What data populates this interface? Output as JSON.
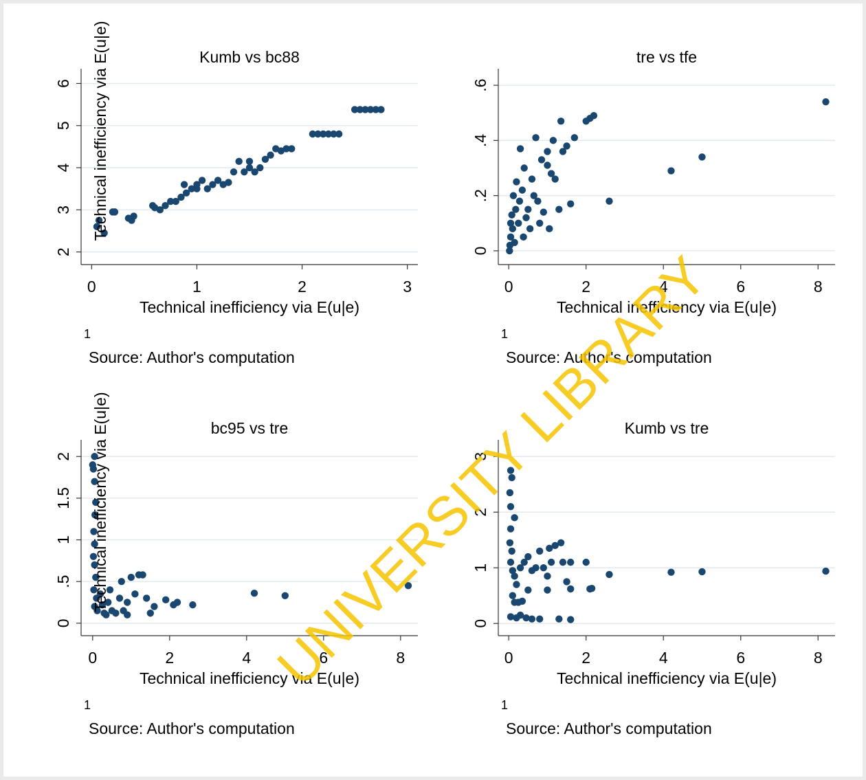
{
  "watermark": "UNIVERSITY LIBRARY",
  "chart_data": [
    {
      "type": "scatter",
      "title": "Kumb vs bc88",
      "xlabel": "Technical inefficiency via E(u|e)",
      "ylabel": "Technical inefficiency via E(u|e)",
      "note": "1",
      "source": "Source: Author's computation",
      "color": "#1a476f",
      "grid": true,
      "xlim": [
        -0.1,
        3.1
      ],
      "ylim": [
        1.7,
        6.35
      ],
      "xticks": [
        0,
        1,
        2,
        3
      ],
      "yticks": [
        2,
        3,
        4,
        5,
        6
      ],
      "x": [
        0.05,
        0.07,
        0.12,
        0.2,
        0.22,
        0.35,
        0.38,
        0.4,
        0.58,
        0.6,
        0.65,
        0.7,
        0.75,
        0.8,
        0.85,
        0.88,
        0.9,
        0.95,
        1.0,
        1.0,
        1.05,
        1.1,
        1.15,
        1.2,
        1.25,
        1.3,
        1.35,
        1.4,
        1.45,
        1.5,
        1.5,
        1.55,
        1.6,
        1.65,
        1.7,
        1.75,
        1.8,
        1.85,
        1.9,
        2.1,
        2.15,
        2.2,
        2.25,
        2.3,
        2.35,
        2.5,
        2.55,
        2.6,
        2.65,
        2.7,
        2.75
      ],
      "values": [
        2.6,
        2.75,
        2.45,
        2.95,
        2.95,
        2.8,
        2.75,
        2.85,
        3.1,
        3.05,
        3.0,
        3.1,
        3.2,
        3.2,
        3.3,
        3.6,
        3.4,
        3.5,
        3.5,
        3.6,
        3.7,
        3.5,
        3.6,
        3.7,
        3.6,
        3.65,
        3.9,
        4.15,
        3.9,
        4.0,
        4.15,
        3.9,
        4.0,
        4.2,
        4.3,
        4.45,
        4.4,
        4.45,
        4.45,
        4.8,
        4.8,
        4.8,
        4.8,
        4.8,
        4.8,
        5.38,
        5.38,
        5.38,
        5.38,
        5.38,
        5.38
      ]
    },
    {
      "type": "scatter",
      "title": "tre vs tfe",
      "xlabel": "Technical inefficiency via E(u|e)",
      "note": "1",
      "source": "Source: Author's computation",
      "color": "#1a476f",
      "grid": true,
      "xlim": [
        -0.27,
        8.44
      ],
      "ylim": [
        -0.05,
        0.66
      ],
      "xticks": [
        0,
        2,
        4,
        6,
        8
      ],
      "yticks": [
        0,
        {
          "value": 0.2,
          "label": ".2"
        },
        {
          "value": 0.4,
          "label": ".4"
        },
        {
          "value": 0.6,
          "label": ".6"
        }
      ],
      "x": [
        0.02,
        0.03,
        0.05,
        0.05,
        0.08,
        0.1,
        0.12,
        0.15,
        0.18,
        0.2,
        0.25,
        0.28,
        0.3,
        0.35,
        0.38,
        0.4,
        0.45,
        0.5,
        0.55,
        0.6,
        0.65,
        0.7,
        0.75,
        0.8,
        0.85,
        0.9,
        1.0,
        1.0,
        1.05,
        1.1,
        1.15,
        1.2,
        1.3,
        1.35,
        1.4,
        1.5,
        1.6,
        1.7,
        2.0,
        2.1,
        2.2,
        2.6,
        4.2,
        5.0,
        8.2
      ],
      "values": [
        0,
        0.02,
        0.05,
        0.1,
        0.13,
        0.08,
        0.2,
        0.03,
        0.15,
        0.25,
        0.1,
        0.18,
        0.37,
        0.22,
        0.05,
        0.3,
        0.12,
        0.15,
        0.08,
        0.26,
        0.2,
        0.41,
        0.18,
        0.1,
        0.33,
        0.14,
        0.36,
        0.31,
        0.08,
        0.28,
        0.4,
        0.26,
        0.15,
        0.47,
        0.36,
        0.38,
        0.17,
        0.41,
        0.47,
        0.48,
        0.49,
        0.18,
        0.29,
        0.34,
        0.54
      ]
    },
    {
      "type": "scatter",
      "title": "bc95 vs tre",
      "xlabel": "Technical inefficiency via E(u|e)",
      "ylabel": "Technical inefficiency via E(u|e)",
      "note": "1",
      "source": "Source: Author's computation",
      "color": "#1a476f",
      "grid": true,
      "xlim": [
        -0.3,
        8.45
      ],
      "ylim": [
        -0.15,
        2.2
      ],
      "xticks": [
        0,
        2,
        4,
        6,
        8
      ],
      "yticks": [
        0,
        {
          "value": 0.5,
          "label": ".5"
        },
        1,
        1.5,
        2
      ],
      "x": [
        0.0,
        0.02,
        0.05,
        0.05,
        0.08,
        0.06,
        0.03,
        0.05,
        0.02,
        0.05,
        0.08,
        0.03,
        0.1,
        0.05,
        0.12,
        0.2,
        0.25,
        0.3,
        0.4,
        0.45,
        0.5,
        0.6,
        0.7,
        0.8,
        0.9,
        1.0,
        1.1,
        1.2,
        1.3,
        1.4,
        1.5,
        1.6,
        1.9,
        2.1,
        2.2,
        2.6,
        4.2,
        5.0,
        8.2,
        0.75,
        0.9,
        0.35
      ],
      "values": [
        1.9,
        1.85,
        2.0,
        1.7,
        1.45,
        1.3,
        1.1,
        0.95,
        0.8,
        0.7,
        0.55,
        0.4,
        0.3,
        0.2,
        0.15,
        0.35,
        0.22,
        0.12,
        0.25,
        0.4,
        0.15,
        0.12,
        0.3,
        0.15,
        0.25,
        0.55,
        0.35,
        0.58,
        0.58,
        0.3,
        0.12,
        0.2,
        0.28,
        0.22,
        0.25,
        0.22,
        0.36,
        0.33,
        0.45,
        0.5,
        0.1,
        0.1
      ]
    },
    {
      "type": "scatter",
      "title": "Kumb vs tre",
      "xlabel": "Technical inefficiency via E(u|e)",
      "note": "1",
      "source": "Source: Author's computation",
      "color": "#1a476f",
      "grid": true,
      "xlim": [
        -0.27,
        8.44
      ],
      "ylim": [
        -0.22,
        3.3
      ],
      "xticks": [
        0,
        2,
        4,
        6,
        8
      ],
      "yticks": [
        0,
        1,
        2,
        3
      ],
      "x": [
        0.05,
        0.08,
        0.03,
        0.05,
        0.15,
        0.05,
        0.03,
        0.08,
        0.05,
        0.1,
        0.15,
        0.2,
        0.1,
        0.15,
        0.25,
        0.35,
        0.05,
        0.2,
        0.3,
        0.45,
        0.6,
        0.8,
        1.3,
        1.6,
        0.3,
        0.4,
        0.5,
        0.6,
        0.7,
        0.8,
        0.9,
        1.0,
        1.05,
        1.1,
        1.2,
        1.35,
        1.4,
        1.5,
        1.6,
        2.0,
        2.1,
        2.15,
        2.6,
        4.2,
        5.0,
        8.2,
        0.5,
        1.0,
        1.6
      ],
      "values": [
        2.75,
        2.62,
        2.35,
        2.1,
        1.9,
        1.7,
        1.45,
        1.3,
        1.1,
        0.95,
        0.85,
        0.7,
        0.5,
        0.38,
        0.38,
        0.4,
        0.12,
        0.1,
        0.15,
        0.1,
        0.08,
        0.08,
        0.08,
        0.07,
        1.0,
        1.1,
        1.2,
        0.95,
        1.0,
        1.3,
        1.0,
        0.85,
        1.35,
        1.1,
        1.4,
        1.45,
        1.1,
        0.75,
        1.1,
        1.1,
        0.62,
        0.63,
        0.88,
        0.92,
        0.93,
        0.94,
        0.6,
        0.6,
        0.62
      ]
    }
  ]
}
